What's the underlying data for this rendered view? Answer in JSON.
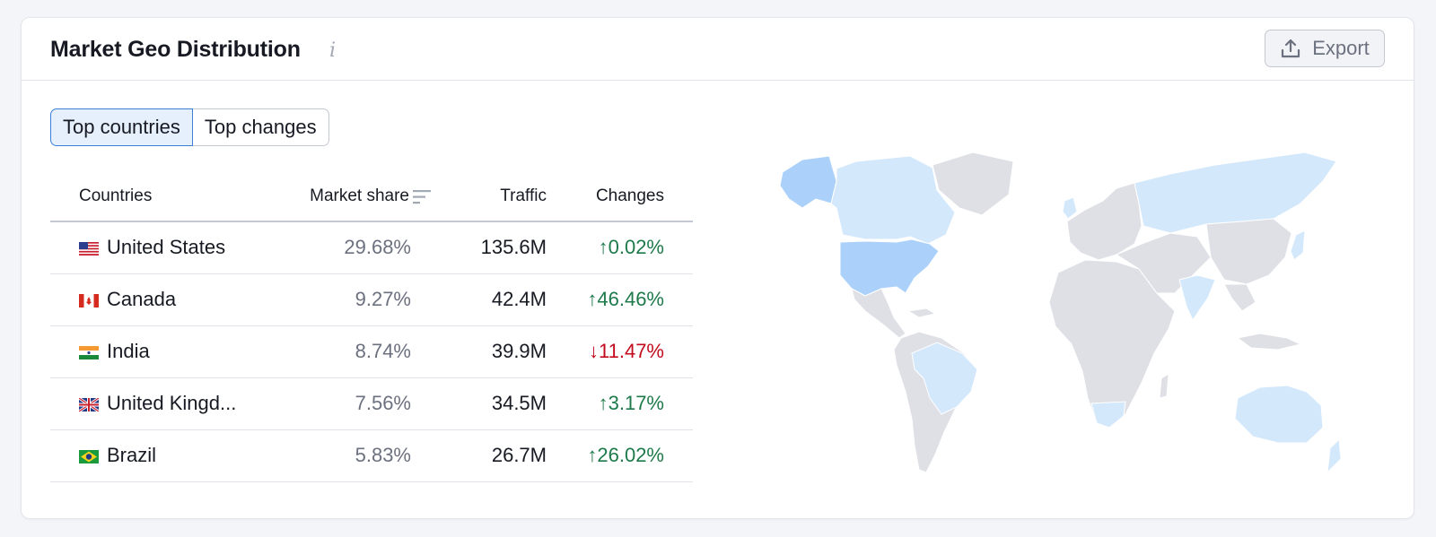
{
  "header": {
    "title": "Market Geo Distribution",
    "info_icon": "i",
    "export_label": "Export"
  },
  "tabs": [
    {
      "label": "Top countries",
      "active": true
    },
    {
      "label": "Top changes",
      "active": false
    }
  ],
  "table": {
    "columns": {
      "country": "Countries",
      "share": "Market share",
      "traffic": "Traffic",
      "changes": "Changes"
    },
    "rows": [
      {
        "country": "United States",
        "flag": "us-flag",
        "share": "29.68%",
        "traffic": "135.6M",
        "change": "0.02%",
        "direction": "up"
      },
      {
        "country": "Canada",
        "flag": "canada-flag",
        "share": "9.27%",
        "traffic": "42.4M",
        "change": "46.46%",
        "direction": "up"
      },
      {
        "country": "India",
        "flag": "india-flag",
        "share": "8.74%",
        "traffic": "39.9M",
        "change": "11.47%",
        "direction": "down"
      },
      {
        "country": "United Kingd...",
        "flag": "uk-flag",
        "share": "7.56%",
        "traffic": "34.5M",
        "change": "3.17%",
        "direction": "up"
      },
      {
        "country": "Brazil",
        "flag": "brazil-flag",
        "share": "5.83%",
        "traffic": "26.7M",
        "change": "26.02%",
        "direction": "up"
      }
    ]
  },
  "colors": {
    "up": "#1e7a4a",
    "down": "#c20c1d",
    "highlight_strong": "#abd1fb",
    "highlight_light": "#d4e8fc",
    "land": "#dfe0e6",
    "accent": "#3b80d9"
  },
  "icons": {
    "arrow_up": "↑",
    "arrow_down": "↓"
  }
}
